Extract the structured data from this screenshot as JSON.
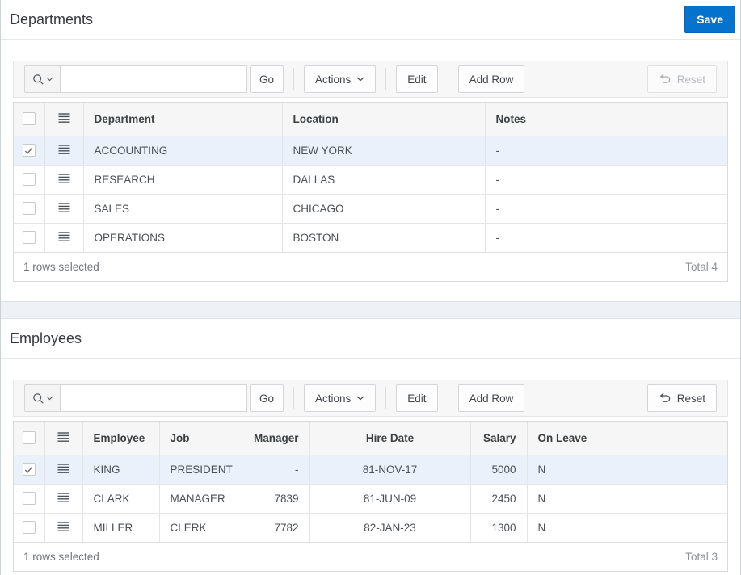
{
  "colors": {
    "save_button_bg": "#0572ce",
    "selected_row_bg": "#eaf1fb",
    "page_background": "#eef2f6",
    "toolbar_background": "#f7f7f7"
  },
  "icons": {
    "search_icon": "magnifier",
    "search_chevron_icon": "chevron-down",
    "actions_chevron_icon": "chevron-down",
    "row_menu_icon": "four-line-menu",
    "reset_icon": "undo-return-arrow",
    "checkbox_checked_icon": "checkmark"
  },
  "departments": {
    "title": "Departments",
    "save_label": "Save",
    "toolbar": {
      "search_placeholder": "",
      "search_value": "",
      "go": "Go",
      "actions": "Actions",
      "edit": "Edit",
      "add_row": "Add Row",
      "reset": "Reset",
      "reset_disabled": true
    },
    "columns": [
      {
        "type": "checkbox",
        "label": ""
      },
      {
        "type": "menu",
        "label": ""
      },
      {
        "type": "data",
        "label": "Department",
        "align": "left"
      },
      {
        "type": "data",
        "label": "Location",
        "align": "left"
      },
      {
        "type": "data",
        "label": "Notes",
        "align": "left"
      }
    ],
    "rows": [
      {
        "selected": true,
        "cells": [
          "ACCOUNTING",
          "NEW YORK",
          "-"
        ]
      },
      {
        "selected": false,
        "cells": [
          "RESEARCH",
          "DALLAS",
          "-"
        ]
      },
      {
        "selected": false,
        "cells": [
          "SALES",
          "CHICAGO",
          "-"
        ]
      },
      {
        "selected": false,
        "cells": [
          "OPERATIONS",
          "BOSTON",
          "-"
        ]
      }
    ],
    "status": "1 rows selected",
    "total": "Total 4"
  },
  "employees": {
    "title": "Employees",
    "toolbar": {
      "search_placeholder": "",
      "search_value": "",
      "go": "Go",
      "actions": "Actions",
      "edit": "Edit",
      "add_row": "Add Row",
      "reset": "Reset",
      "reset_disabled": false
    },
    "columns": [
      {
        "type": "checkbox",
        "label": ""
      },
      {
        "type": "menu",
        "label": ""
      },
      {
        "type": "data",
        "label": "Employee",
        "align": "left"
      },
      {
        "type": "data",
        "label": "Job",
        "align": "left"
      },
      {
        "type": "data",
        "label": "Manager",
        "align": "right"
      },
      {
        "type": "data",
        "label": "Hire Date",
        "align": "center"
      },
      {
        "type": "data",
        "label": "Salary",
        "align": "right"
      },
      {
        "type": "data",
        "label": "On Leave",
        "align": "left"
      }
    ],
    "rows": [
      {
        "selected": true,
        "cells": [
          "KING",
          "PRESIDENT",
          "-",
          "81-NOV-17",
          "5000",
          "N"
        ]
      },
      {
        "selected": false,
        "cells": [
          "CLARK",
          "MANAGER",
          "7839",
          "81-JUN-09",
          "2450",
          "N"
        ]
      },
      {
        "selected": false,
        "cells": [
          "MILLER",
          "CLERK",
          "7782",
          "82-JAN-23",
          "1300",
          "N"
        ]
      }
    ],
    "status": "1 rows selected",
    "total": "Total 3"
  }
}
